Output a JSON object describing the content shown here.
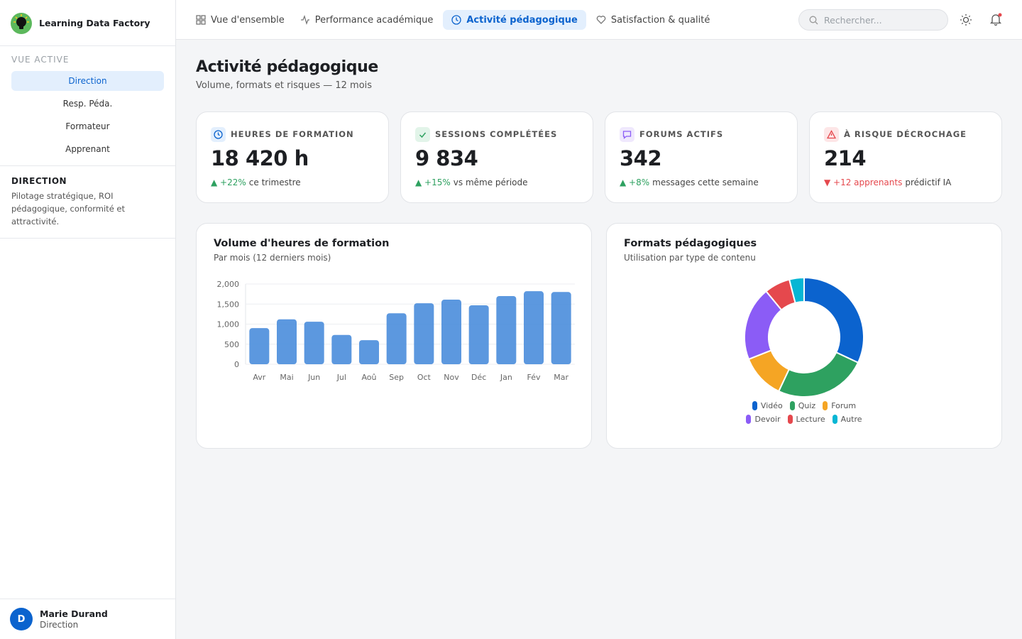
{
  "sidebar": {
    "brand": "Learning Data Factory",
    "section_label": "VUE ACTIVE",
    "views": [
      "Direction",
      "Resp. Péda.",
      "Formateur",
      "Apprenant"
    ],
    "active_title": "DIRECTION",
    "active_description": "Pilotage stratégique, ROI pédagogique, conformité et attractivité.",
    "user": {
      "initial": "D",
      "name": "Marie Durand",
      "role": "Direction"
    }
  },
  "nav": {
    "tabs": [
      "Vue d'ensemble",
      "Performance académique",
      "Activité pédagogique",
      "Satisfaction & qualité"
    ],
    "search_placeholder": "Rechercher..."
  },
  "header": {
    "title": "Activité pédagogique",
    "subtitle": "Volume, formats et risques — 12 mois"
  },
  "kpis": [
    {
      "label": "HEURES DE FORMATION",
      "value": "18 420 h",
      "delta": "▲ +22%",
      "note": "ce trimestre"
    },
    {
      "label": "SESSIONS COMPLÉTÉES",
      "value": "9 834",
      "delta": "▲ +15%",
      "note": "vs même période"
    },
    {
      "label": "FORUMS ACTIFS",
      "value": "342",
      "delta": "▲ +8%",
      "note": "messages cette semaine"
    },
    {
      "label": "À RISQUE DÉCROCHAGE",
      "value": "214",
      "delta": "▼ +12 apprenants",
      "note": "prédictif IA"
    }
  ],
  "chart_data": [
    {
      "type": "bar",
      "title": "Volume d'heures de formation",
      "subtitle": "Par mois (12 derniers mois)",
      "categories": [
        "Avr",
        "Mai",
        "Jun",
        "Jul",
        "Aoû",
        "Sep",
        "Oct",
        "Nov",
        "Déc",
        "Jan",
        "Fév",
        "Mar"
      ],
      "values": [
        900,
        1120,
        1060,
        730,
        600,
        1270,
        1520,
        1610,
        1470,
        1700,
        1820,
        1800
      ],
      "color": "#4a8ddc",
      "ylim": [
        0,
        2000
      ],
      "yticks": [
        0,
        500,
        {
          "value": 1000,
          "label": "1,000"
        },
        {
          "value": 1500,
          "label": "1,500"
        },
        {
          "value": 2000,
          "label": "2,000"
        }
      ],
      "grid": true
    },
    {
      "type": "pie",
      "title": "Formats pédagogiques",
      "subtitle": "Utilisation par type de contenu",
      "categories": [
        "Vidéo",
        "Quiz",
        "Forum",
        "Devoir",
        "Lecture",
        "Autre"
      ],
      "values": [
        32,
        25,
        12,
        20,
        7,
        4
      ],
      "colors": [
        "#0b63ce",
        "#2ea160",
        "#f5a524",
        "#8b5cf6",
        "#e5484d",
        "#06b6d4"
      ]
    }
  ]
}
